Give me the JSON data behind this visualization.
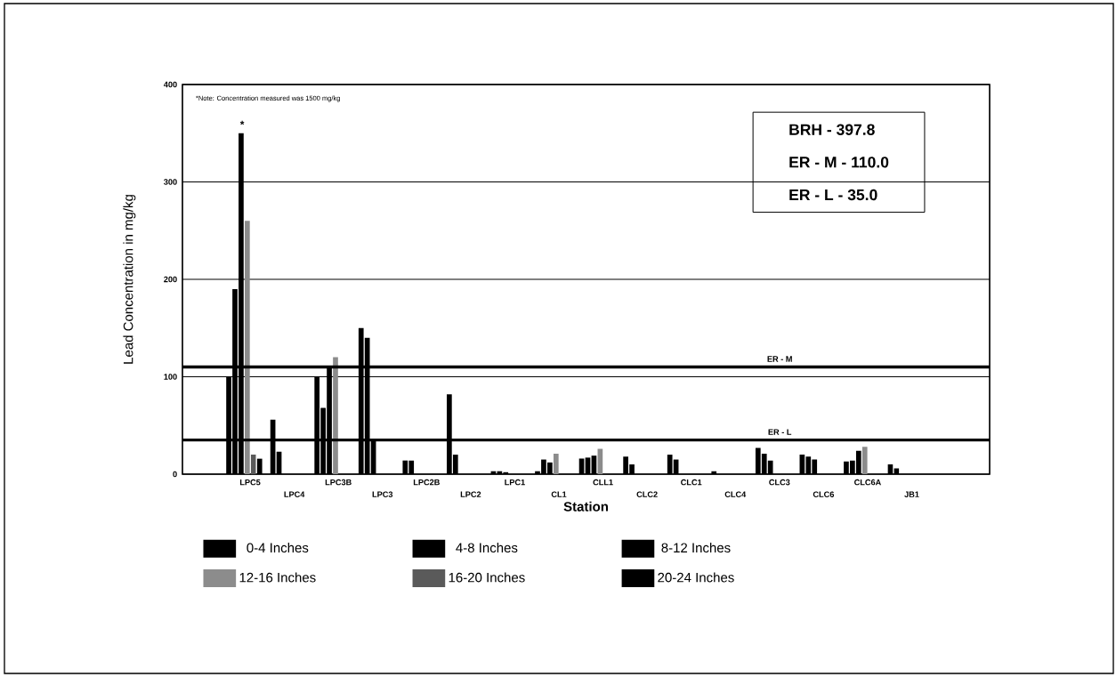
{
  "chart_data": {
    "type": "bar",
    "xlabel": "Station",
    "ylabel": "Lead Concentration in mg/kg",
    "categories": [
      "LPC5",
      "LPC4",
      "LPC3B",
      "LPC3",
      "LPC2B",
      "LPC2",
      "LPC1",
      "CL1",
      "CLL1",
      "CLC2",
      "CLC1",
      "CLC4",
      "CLC3",
      "CLC6",
      "CLC6A",
      "JB1"
    ],
    "series": [
      {
        "name": "0-4 Inches",
        "color": "#000000",
        "values": [
          100,
          56,
          100,
          150,
          14,
          82,
          3,
          3,
          16,
          18,
          20,
          3,
          27,
          20,
          13,
          10
        ]
      },
      {
        "name": "4-8 Inches",
        "color": "#000000",
        "values": [
          190,
          23,
          68,
          140,
          14,
          20,
          3,
          15,
          17,
          10,
          15,
          null,
          21,
          18,
          14,
          6
        ]
      },
      {
        "name": "8-12 Inches",
        "color": "#000000",
        "values": [
          350,
          null,
          110,
          35,
          null,
          null,
          2,
          12,
          19,
          null,
          null,
          null,
          14,
          15,
          24,
          null
        ]
      },
      {
        "name": "12-16 Inches",
        "color": "#8c8c8c",
        "values": [
          260,
          null,
          120,
          null,
          null,
          null,
          null,
          21,
          26,
          null,
          null,
          null,
          null,
          null,
          28,
          null
        ]
      },
      {
        "name": "16-20 Inches",
        "color": "#5a5a5a",
        "values": [
          20,
          null,
          null,
          null,
          null,
          null,
          null,
          null,
          null,
          null,
          null,
          null,
          null,
          null,
          null,
          null
        ]
      },
      {
        "name": "20-24 Inches",
        "color": "#000000",
        "values": [
          16,
          null,
          null,
          null,
          null,
          null,
          null,
          null,
          null,
          null,
          null,
          null,
          null,
          null,
          null,
          null
        ]
      }
    ],
    "ylim": [
      0,
      400
    ],
    "yticks": [
      0,
      100,
      200,
      300,
      400
    ],
    "grid": "y",
    "legend": "bottom",
    "ref_lines": [
      {
        "axis": "y",
        "value": 110,
        "label": "ER - M"
      },
      {
        "axis": "y",
        "value": 35,
        "label": "ER - L"
      }
    ],
    "annotations": [
      "*Note:  Concentration measured was 1500  mg/kg",
      "*",
      "BRH  -  397.8",
      "ER - M  -  110.0",
      "ER - L  -  35.0"
    ]
  }
}
